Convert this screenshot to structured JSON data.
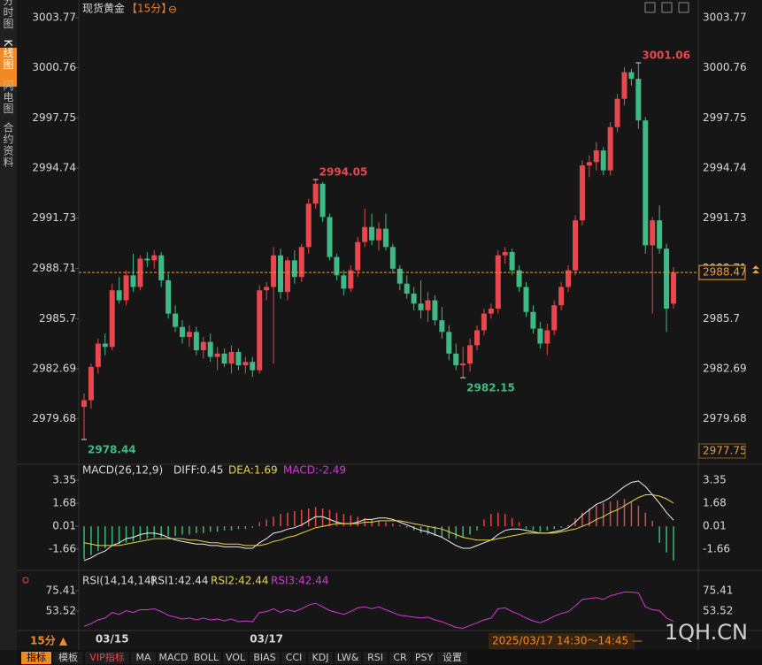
{
  "header": {
    "title": "现货黄金",
    "period": "【15分】",
    "icon": "⊖"
  },
  "sidebar": [
    "分时图",
    "K线图",
    "闪电图",
    "合约资料"
  ],
  "chart_data": [
    {
      "type": "candlestick",
      "ylim": [
        2977.75,
        3003.77
      ],
      "yticks": [
        3003.77,
        3000.76,
        2997.75,
        2994.74,
        2991.73,
        2988.71,
        2985.7,
        2982.69,
        2979.68
      ],
      "last_price": 2988.47,
      "extremes": [
        3001.06,
        2994.05,
        2982.15,
        2978.44
      ],
      "up_color": "#e8474d",
      "down_color": "#3fb985",
      "categories": [
        null,
        null,
        null,
        null,
        "03/15",
        null,
        null,
        null,
        null,
        null,
        null,
        null,
        null,
        null,
        null,
        null,
        null,
        null,
        null,
        null,
        null,
        null,
        null,
        null,
        null,
        null,
        "03/17",
        null,
        null,
        null,
        null,
        null,
        null,
        null,
        null,
        null,
        null,
        null,
        null,
        null,
        null,
        null,
        null,
        null,
        null,
        null,
        null,
        null,
        null,
        null,
        null,
        null,
        null,
        null,
        null,
        null,
        null,
        null,
        null,
        null,
        null,
        null,
        null,
        null,
        null,
        null,
        null,
        null,
        null,
        null,
        null,
        null,
        null,
        null,
        null,
        null,
        null,
        null,
        null,
        null,
        null,
        null,
        null,
        null,
        null
      ],
      "candles": [
        [
          2980.4,
          2981.2,
          2978.44,
          2980.8
        ],
        [
          2980.8,
          2983.0,
          2980.3,
          2982.8
        ],
        [
          2982.8,
          2984.5,
          2982.4,
          2984.2
        ],
        [
          2984.2,
          2984.8,
          2983.5,
          2984.0
        ],
        [
          2984.0,
          2987.8,
          2983.8,
          2987.4
        ],
        [
          2987.4,
          2988.2,
          2986.6,
          2986.8
        ],
        [
          2986.8,
          2988.6,
          2986.5,
          2988.3
        ],
        [
          2988.3,
          2989.6,
          2987.3,
          2987.6
        ],
        [
          2987.6,
          2989.5,
          2987.4,
          2989.3
        ],
        [
          2989.3,
          2989.7,
          2988.8,
          2989.2
        ],
        [
          2989.2,
          2989.8,
          2988.7,
          2989.5
        ],
        [
          2989.5,
          2989.7,
          2987.6,
          2988.0
        ],
        [
          2988.0,
          2988.4,
          2985.7,
          2986.0
        ],
        [
          2986.0,
          2986.5,
          2984.9,
          2985.2
        ],
        [
          2985.2,
          2985.6,
          2984.2,
          2984.6
        ],
        [
          2984.6,
          2985.3,
          2984.0,
          2984.9
        ],
        [
          2984.9,
          2985.2,
          2983.5,
          2983.8
        ],
        [
          2983.8,
          2984.6,
          2983.3,
          2984.3
        ],
        [
          2984.3,
          2984.8,
          2983.1,
          2983.4
        ],
        [
          2983.4,
          2984.0,
          2982.6,
          2983.6
        ],
        [
          2983.6,
          2983.9,
          2982.8,
          2983.0
        ],
        [
          2983.0,
          2984.1,
          2982.4,
          2983.7
        ],
        [
          2983.7,
          2983.9,
          2982.6,
          2982.9
        ],
        [
          2982.9,
          2983.4,
          2982.4,
          2983.1
        ],
        [
          2983.1,
          2983.4,
          2982.2,
          2982.6
        ],
        [
          2982.6,
          2987.7,
          2982.4,
          2987.4
        ],
        [
          2987.4,
          2987.9,
          2986.8,
          2987.6
        ],
        [
          2987.6,
          2990.0,
          2983.0,
          2989.5
        ],
        [
          2989.5,
          2989.9,
          2986.9,
          2987.3
        ],
        [
          2987.3,
          2989.4,
          2986.8,
          2989.2
        ],
        [
          2989.2,
          2989.8,
          2987.8,
          2988.2
        ],
        [
          2988.2,
          2990.2,
          2987.9,
          2990.0
        ],
        [
          2990.0,
          2992.9,
          2989.6,
          2992.6
        ],
        [
          2992.6,
          2994.05,
          2992.3,
          2993.8
        ],
        [
          2993.8,
          2993.9,
          2991.5,
          2991.8
        ],
        [
          2991.8,
          2992.0,
          2989.2,
          2989.4
        ],
        [
          2989.4,
          2989.6,
          2988.0,
          2988.3
        ],
        [
          2988.3,
          2988.6,
          2987.1,
          2987.5
        ],
        [
          2987.5,
          2988.9,
          2987.3,
          2988.6
        ],
        [
          2988.6,
          2990.6,
          2988.2,
          2990.3
        ],
        [
          2990.3,
          2992.3,
          2990.0,
          2991.2
        ],
        [
          2991.2,
          2992.0,
          2990.1,
          2990.4
        ],
        [
          2990.4,
          2991.5,
          2989.8,
          2991.1
        ],
        [
          2991.1,
          2992.0,
          2989.8,
          2990.0
        ],
        [
          2990.0,
          2990.2,
          2988.4,
          2988.7
        ],
        [
          2988.7,
          2988.9,
          2987.4,
          2987.8
        ],
        [
          2987.8,
          2988.3,
          2986.9,
          2987.2
        ],
        [
          2987.2,
          2987.6,
          2986.2,
          2986.6
        ],
        [
          2986.6,
          2988.0,
          2985.7,
          2986.2
        ],
        [
          2986.2,
          2987.3,
          2985.5,
          2986.8
        ],
        [
          2986.8,
          2987.1,
          2985.3,
          2985.6
        ],
        [
          2985.6,
          2986.4,
          2984.5,
          2984.9
        ],
        [
          2984.9,
          2985.3,
          2983.2,
          2983.6
        ],
        [
          2983.6,
          2984.2,
          2982.6,
          2982.9
        ],
        [
          2982.9,
          2984.0,
          2982.15,
          2983.0
        ],
        [
          2983.0,
          2984.5,
          2982.5,
          2984.1
        ],
        [
          2984.1,
          2985.3,
          2983.8,
          2985.0
        ],
        [
          2985.0,
          2986.3,
          2984.7,
          2986.0
        ],
        [
          2986.0,
          2986.6,
          2985.7,
          2986.3
        ],
        [
          2986.3,
          2989.8,
          2986.0,
          2989.5
        ],
        [
          2989.5,
          2990.0,
          2989.0,
          2989.7
        ],
        [
          2989.7,
          2989.9,
          2988.3,
          2988.6
        ],
        [
          2988.6,
          2988.9,
          2987.3,
          2987.6
        ],
        [
          2987.6,
          2987.9,
          2985.8,
          2986.1
        ],
        [
          2986.1,
          2986.5,
          2984.8,
          2985.1
        ],
        [
          2985.1,
          2985.5,
          2983.9,
          2984.2
        ],
        [
          2984.2,
          2985.4,
          2983.5,
          2985.0
        ],
        [
          2985.0,
          2986.8,
          2984.7,
          2986.5
        ],
        [
          2986.5,
          2987.9,
          2986.2,
          2987.6
        ],
        [
          2987.6,
          2988.9,
          2987.3,
          2988.6
        ],
        [
          2988.6,
          2991.9,
          2988.3,
          2991.6
        ],
        [
          2991.6,
          2995.2,
          2991.3,
          2994.9
        ],
        [
          2994.9,
          2995.5,
          2994.2,
          2995.1
        ],
        [
          2995.1,
          2996.3,
          2994.6,
          2995.8
        ],
        [
          2995.8,
          2996.0,
          2994.3,
          2994.6
        ],
        [
          2994.6,
          2997.5,
          2994.3,
          2997.2
        ],
        [
          2997.2,
          2999.2,
          2996.9,
          2998.9
        ],
        [
          2998.9,
          3000.8,
          2998.5,
          3000.5
        ],
        [
          3000.5,
          3000.7,
          2999.7,
          3000.1
        ],
        [
          3000.1,
          3001.06,
          2997.1,
          2997.6
        ],
        [
          2997.6,
          2997.8,
          2989.6,
          2990.1
        ],
        [
          2990.1,
          2991.8,
          2986.0,
          2991.6
        ],
        [
          2991.6,
          2992.5,
          2989.6,
          2989.9
        ],
        [
          2989.9,
          2990.2,
          2984.9,
          2986.3
        ],
        [
          2986.6,
          2988.8,
          2986.3,
          2988.47
        ]
      ]
    },
    {
      "type": "macd",
      "title": "MACD(26,12,9)",
      "legend": [
        "DIFF:0.45",
        "DEA:1.69",
        "MACD:-2.49"
      ],
      "ylim": [
        -2.89,
        4.07
      ],
      "yticks": [
        3.35,
        1.68,
        0.01,
        -1.66
      ],
      "up_color": "#e04a4a",
      "down_color": "#3cb878",
      "histogram": [
        -2.4,
        -2.1,
        -1.8,
        -1.6,
        -1.4,
        -1.3,
        -1.2,
        -1.1,
        -1.0,
        -0.9,
        -0.8,
        -0.8,
        -0.7,
        -0.7,
        -0.6,
        -0.6,
        -0.5,
        -0.5,
        -0.4,
        -0.4,
        -0.3,
        -0.3,
        -0.2,
        -0.2,
        -0.1,
        0.3,
        0.5,
        0.7,
        0.9,
        1.0,
        1.1,
        1.2,
        1.3,
        1.4,
        1.3,
        1.2,
        1.0,
        0.9,
        0.8,
        0.7,
        0.6,
        0.5,
        0.4,
        0.3,
        0.2,
        0.1,
        -0.1,
        -0.3,
        -0.5,
        -0.6,
        -0.7,
        -0.8,
        -0.9,
        -0.9,
        -0.8,
        -0.6,
        -0.3,
        0.5,
        0.9,
        1.0,
        0.9,
        0.6,
        0.3,
        -0.2,
        -0.3,
        -0.4,
        -0.3,
        -0.2,
        -0.1,
        0.1,
        0.6,
        1.0,
        1.3,
        1.5,
        1.7,
        1.8,
        1.9,
        2.0,
        1.8,
        1.5,
        1.0,
        0.4,
        -1.2,
        -1.9,
        -2.49
      ],
      "series": [
        {
          "name": "DIFF",
          "color": "#f0f0f0",
          "values": [
            -2.5,
            -2.3,
            -2.0,
            -1.8,
            -1.4,
            -1.2,
            -0.9,
            -0.8,
            -0.6,
            -0.5,
            -0.5,
            -0.6,
            -0.8,
            -1.0,
            -1.1,
            -1.2,
            -1.3,
            -1.3,
            -1.4,
            -1.4,
            -1.5,
            -1.5,
            -1.5,
            -1.6,
            -1.6,
            -1.2,
            -0.9,
            -0.5,
            -0.4,
            -0.2,
            -0.1,
            0.1,
            0.4,
            0.7,
            0.7,
            0.5,
            0.3,
            0.2,
            0.2,
            0.3,
            0.5,
            0.5,
            0.6,
            0.6,
            0.5,
            0.3,
            0.1,
            -0.1,
            -0.3,
            -0.4,
            -0.6,
            -0.8,
            -1.1,
            -1.4,
            -1.6,
            -1.6,
            -1.4,
            -1.2,
            -1.0,
            -0.6,
            -0.3,
            -0.2,
            -0.2,
            -0.3,
            -0.4,
            -0.5,
            -0.5,
            -0.4,
            -0.3,
            -0.1,
            0.3,
            0.8,
            1.2,
            1.6,
            1.8,
            2.1,
            2.5,
            2.9,
            3.2,
            3.3,
            2.9,
            2.3,
            1.7,
            1.0,
            0.45
          ]
        },
        {
          "name": "DEA",
          "color": "#e6d64a",
          "values": [
            -1.2,
            -1.3,
            -1.4,
            -1.4,
            -1.4,
            -1.4,
            -1.3,
            -1.2,
            -1.1,
            -1.0,
            -0.9,
            -0.9,
            -0.9,
            -0.9,
            -0.9,
            -1.0,
            -1.0,
            -1.1,
            -1.2,
            -1.2,
            -1.3,
            -1.3,
            -1.3,
            -1.4,
            -1.4,
            -1.4,
            -1.3,
            -1.1,
            -1.0,
            -0.8,
            -0.7,
            -0.5,
            -0.3,
            -0.1,
            0.0,
            0.1,
            0.2,
            0.2,
            0.2,
            0.2,
            0.3,
            0.3,
            0.4,
            0.4,
            0.4,
            0.4,
            0.3,
            0.2,
            0.1,
            0.0,
            -0.1,
            -0.2,
            -0.4,
            -0.6,
            -0.8,
            -0.9,
            -1.0,
            -1.0,
            -1.0,
            -0.9,
            -0.8,
            -0.7,
            -0.6,
            -0.5,
            -0.5,
            -0.5,
            -0.5,
            -0.5,
            -0.4,
            -0.3,
            -0.2,
            0.0,
            0.2,
            0.5,
            0.7,
            1.0,
            1.2,
            1.5,
            1.8,
            2.1,
            2.3,
            2.3,
            2.2,
            2.0,
            1.69
          ]
        }
      ]
    },
    {
      "type": "line",
      "title": "RSI(14,14,14)",
      "legend": [
        "RSI1:42.44",
        "RSI2:42.44",
        "RSI3:42.44"
      ],
      "legend_colors": [
        "#dddddd",
        "#e6d64a",
        "#d23ad2"
      ],
      "ylim": [
        30.7,
        87.8
      ],
      "yticks": [
        75.41,
        53.52
      ],
      "series": [
        {
          "name": "RSI",
          "color": "#d23ad2",
          "values": [
            37,
            40,
            44,
            46,
            52,
            50,
            54,
            52,
            55,
            55,
            56,
            53,
            49,
            47,
            45,
            46,
            44,
            46,
            44,
            45,
            43,
            45,
            42,
            43,
            42,
            52,
            53,
            56,
            52,
            55,
            53,
            56,
            60,
            62,
            58,
            54,
            52,
            50,
            53,
            57,
            58,
            56,
            58,
            55,
            52,
            49,
            48,
            47,
            46,
            47,
            44,
            42,
            39,
            36,
            35,
            38,
            41,
            44,
            46,
            56,
            57,
            53,
            50,
            46,
            43,
            41,
            44,
            48,
            51,
            53,
            59,
            66,
            67,
            68,
            66,
            70,
            72,
            74,
            74,
            73,
            58,
            55,
            54,
            46,
            42.44
          ]
        }
      ]
    }
  ],
  "footer": {
    "period": "15分 ▲",
    "range": "2025/03/17 14:30～14:45 —",
    "watermark": "1QH.CN",
    "tabs": [
      "指标",
      "模板",
      "VIP指标",
      "MA",
      "MACD",
      "BOLL",
      "VOL",
      "BIAS",
      "CCI",
      "KDJ",
      "LW&",
      "RSI",
      "CR",
      "PSY",
      "设置"
    ]
  }
}
